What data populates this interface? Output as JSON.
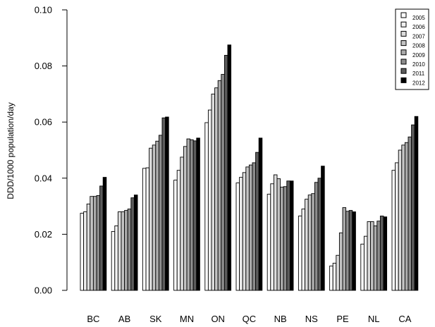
{
  "chart_data": {
    "type": "bar",
    "title": "",
    "xlabel": "",
    "ylabel": "DDD/1000 population/day",
    "ylim": [
      0,
      0.1
    ],
    "yticks": [
      "0.00",
      "0.02",
      "0.04",
      "0.06",
      "0.08",
      "0.10"
    ],
    "ytick_values": [
      0,
      0.02,
      0.04,
      0.06,
      0.08,
      0.1
    ],
    "categories": [
      "BC",
      "AB",
      "SK",
      "MN",
      "ON",
      "QC",
      "NB",
      "NS",
      "PE",
      "NL",
      "CA"
    ],
    "grid": false,
    "legend_position": "top-right",
    "series": [
      {
        "name": "2005",
        "color": "#ffffff",
        "values": [
          0.0275,
          0.021,
          0.0435,
          0.0393,
          0.0598,
          0.0383,
          0.0343,
          0.0265,
          0.0087,
          0.0165,
          0.0428
        ]
      },
      {
        "name": "2006",
        "color": "#f0f0f0",
        "values": [
          0.028,
          0.023,
          0.0437,
          0.0428,
          0.0643,
          0.0403,
          0.038,
          0.029,
          0.0097,
          0.0193,
          0.0455
        ]
      },
      {
        "name": "2007",
        "color": "#dcdcdc",
        "values": [
          0.0308,
          0.028,
          0.0507,
          0.0475,
          0.07,
          0.042,
          0.0412,
          0.0325,
          0.0125,
          0.0245,
          0.05
        ]
      },
      {
        "name": "2008",
        "color": "#c4c4c4",
        "values": [
          0.0335,
          0.028,
          0.0518,
          0.0513,
          0.0722,
          0.044,
          0.0398,
          0.034,
          0.0205,
          0.0245,
          0.0518
        ]
      },
      {
        "name": "2009",
        "color": "#aaaaaa",
        "values": [
          0.0335,
          0.0285,
          0.0532,
          0.054,
          0.0748,
          0.0447,
          0.0368,
          0.0345,
          0.0295,
          0.023,
          0.0527
        ]
      },
      {
        "name": "2010",
        "color": "#8c8c8c",
        "values": [
          0.0338,
          0.029,
          0.0553,
          0.0537,
          0.077,
          0.0455,
          0.037,
          0.0385,
          0.0282,
          0.0247,
          0.0547
        ]
      },
      {
        "name": "2011",
        "color": "#5c5c5c",
        "values": [
          0.0372,
          0.033,
          0.0615,
          0.0533,
          0.0838,
          0.0492,
          0.039,
          0.04,
          0.0285,
          0.0265,
          0.059
        ]
      },
      {
        "name": "2012",
        "color": "#000000",
        "values": [
          0.0403,
          0.034,
          0.0618,
          0.0543,
          0.0875,
          0.0543,
          0.039,
          0.0443,
          0.028,
          0.0262,
          0.062
        ]
      }
    ]
  }
}
